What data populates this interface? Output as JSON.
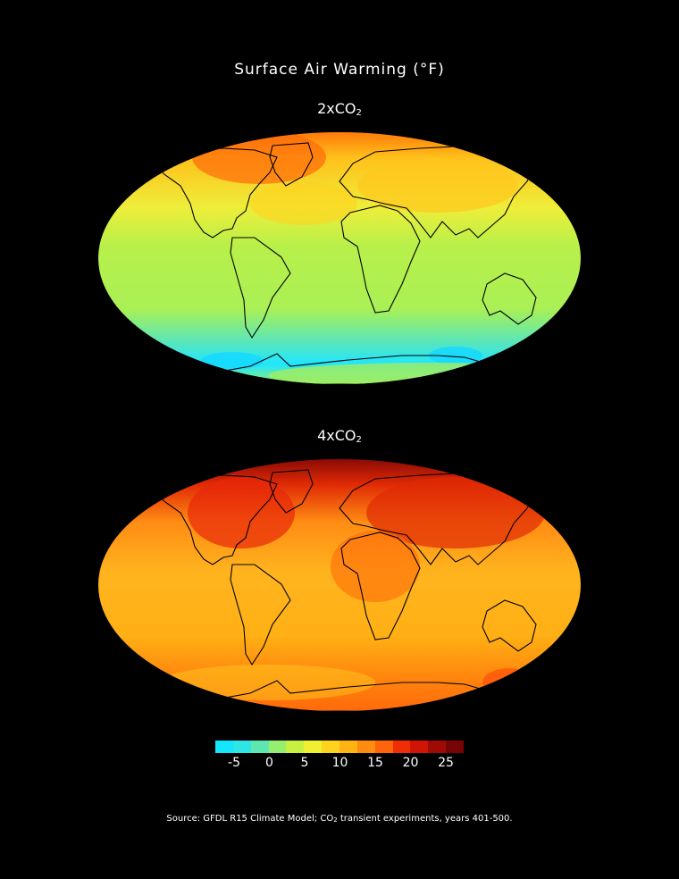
{
  "title": "Surface Air Warming (°F)",
  "panels": [
    {
      "label_prefix": "2xCO",
      "label_sub": "2",
      "scenario": "2xCO2"
    },
    {
      "label_prefix": "4xCO",
      "label_sub": "2",
      "scenario": "4xCO2"
    }
  ],
  "legend": {
    "colors": [
      "#14e6ff",
      "#2ee6e6",
      "#5ee6b0",
      "#96ee6e",
      "#c8f040",
      "#f0f032",
      "#ffd21e",
      "#ffb414",
      "#ff8c0f",
      "#ff640a",
      "#f02d05",
      "#d21405",
      "#a00a05",
      "#780505"
    ],
    "ticks": [
      "-5",
      "0",
      "5",
      "10",
      "15",
      "20",
      "25"
    ]
  },
  "source": {
    "prefix": "Source:  GFDL R15 Climate Model; CO",
    "sub": "2",
    "suffix": " transient experiments, years 401-500."
  }
}
